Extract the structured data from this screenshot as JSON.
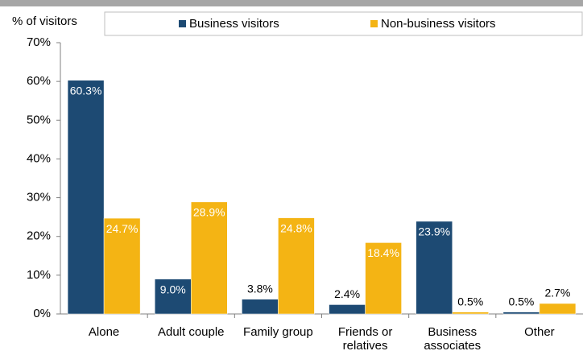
{
  "chart_data": {
    "type": "bar",
    "y_axis_label": "% of visitors",
    "categories": [
      "Alone",
      "Adult couple",
      "Family group",
      "Friends or relatives",
      "Business associates",
      "Other"
    ],
    "series": [
      {
        "name": "Business visitors",
        "color": "#1d4a73",
        "values": [
          60.3,
          9.0,
          3.8,
          2.4,
          23.9,
          0.5
        ],
        "value_labels": [
          "60.3%",
          "9.0%",
          "3.8%",
          "2.4%",
          "23.9%",
          "0.5%"
        ]
      },
      {
        "name": "Non-business visitors",
        "color": "#f4b414",
        "values": [
          24.7,
          28.9,
          24.8,
          18.4,
          0.5,
          2.7
        ],
        "value_labels": [
          "24.7%",
          "28.9%",
          "24.8%",
          "18.4%",
          "0.5%",
          "2.7%"
        ]
      }
    ],
    "ylim": [
      0,
      70
    ],
    "yticks": [
      {
        "value": 0,
        "label": "0%"
      },
      {
        "value": 10,
        "label": "10%"
      },
      {
        "value": 20,
        "label": "20%"
      },
      {
        "value": 30,
        "label": "30%"
      },
      {
        "value": 40,
        "label": "40%"
      },
      {
        "value": 50,
        "label": "50%"
      },
      {
        "value": 60,
        "label": "60%"
      },
      {
        "value": 70,
        "label": "70%"
      }
    ],
    "legend": "top"
  }
}
